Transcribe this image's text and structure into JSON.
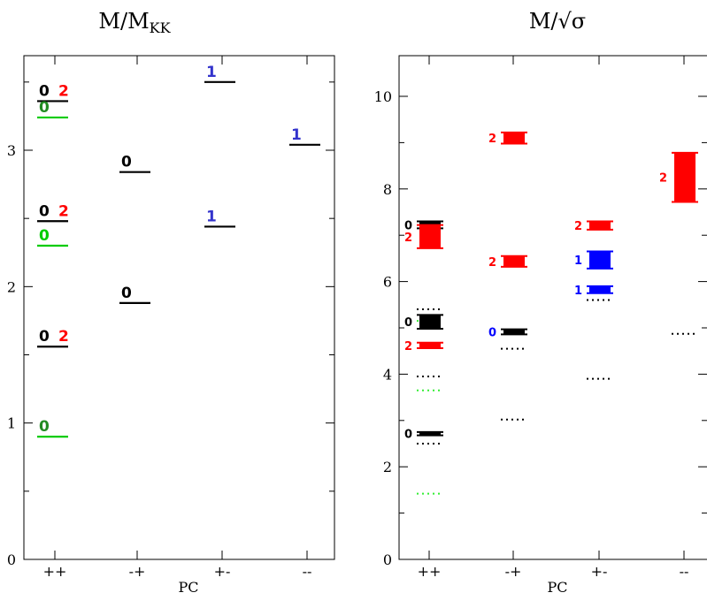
{
  "colors": {
    "black": "#000000",
    "red": "#ff0000",
    "green": "#00cc00",
    "darkgreen": "#228b22",
    "blue": "#0000ff",
    "label_blue": "#3333cc",
    "dotted_green": "#33ee33"
  },
  "chart_data": [
    {
      "type": "scatter",
      "title": "M/M",
      "title_sub": "KK",
      "xlabel": "PC",
      "ylabel": "",
      "categories": [
        "++",
        "-+",
        "+-",
        "--"
      ],
      "ylim": [
        0,
        3.5
      ],
      "yticks": [
        0,
        1,
        2,
        3
      ],
      "levels": [
        {
          "cat": 0,
          "y": 3.36,
          "color": "black",
          "labels": [
            {
              "text": "0",
              "color": "black"
            },
            {
              "text": "2",
              "color": "red"
            }
          ]
        },
        {
          "cat": 0,
          "y": 3.24,
          "color": "green",
          "labels": [
            {
              "text": "0",
              "color": "darkgreen"
            }
          ]
        },
        {
          "cat": 0,
          "y": 2.48,
          "color": "black",
          "labels": [
            {
              "text": "0",
              "color": "black"
            },
            {
              "text": "2",
              "color": "red"
            }
          ]
        },
        {
          "cat": 0,
          "y": 2.3,
          "color": "green",
          "labels": [
            {
              "text": "0",
              "color": "green"
            }
          ]
        },
        {
          "cat": 0,
          "y": 1.56,
          "color": "black",
          "labels": [
            {
              "text": "0",
              "color": "black"
            },
            {
              "text": "2",
              "color": "red"
            }
          ]
        },
        {
          "cat": 0,
          "y": 0.9,
          "color": "green",
          "labels": [
            {
              "text": "0",
              "color": "darkgreen"
            }
          ]
        },
        {
          "cat": 1,
          "y": 2.84,
          "color": "black",
          "labels": [
            {
              "text": "0",
              "color": "black"
            }
          ]
        },
        {
          "cat": 1,
          "y": 1.88,
          "color": "black",
          "labels": [
            {
              "text": "0",
              "color": "black"
            }
          ]
        },
        {
          "cat": 2,
          "y": 3.5,
          "color": "black",
          "labels": [
            {
              "text": "1",
              "color": "label_blue"
            }
          ]
        },
        {
          "cat": 2,
          "y": 2.44,
          "color": "black",
          "labels": [
            {
              "text": "1",
              "color": "label_blue"
            }
          ]
        },
        {
          "cat": 3,
          "y": 3.04,
          "color": "black",
          "labels": [
            {
              "text": "1",
              "color": "label_blue"
            }
          ]
        }
      ]
    },
    {
      "type": "scatter",
      "title": "M/√σ",
      "xlabel": "PC",
      "ylabel": "",
      "categories": [
        "++",
        "-+",
        "+-",
        "--"
      ],
      "ylim": [
        0,
        10.5
      ],
      "yticks": [
        0,
        2,
        4,
        6,
        8,
        10
      ],
      "bands": [
        {
          "cat": 0,
          "ylo": 7.15,
          "yhi": 7.3,
          "color": "black",
          "label": {
            "text": "0",
            "color": "black"
          }
        },
        {
          "cat": 0,
          "ylo": 6.72,
          "yhi": 7.22,
          "color": "red",
          "label": {
            "text": "2",
            "color": "red"
          }
        },
        {
          "cat": 0,
          "ylo": 4.98,
          "yhi": 5.28,
          "color": "black",
          "label": {
            "text": "0",
            "color": "black"
          }
        },
        {
          "cat": 0,
          "ylo": 4.56,
          "yhi": 4.68,
          "color": "red",
          "label": {
            "text": "2",
            "color": "red"
          }
        },
        {
          "cat": 0,
          "ylo": 2.68,
          "yhi": 2.75,
          "color": "black",
          "label": {
            "text": "0",
            "color": "black"
          }
        },
        {
          "cat": 1,
          "ylo": 8.98,
          "yhi": 9.22,
          "color": "red",
          "label": {
            "text": "2",
            "color": "red"
          }
        },
        {
          "cat": 1,
          "ylo": 6.32,
          "yhi": 6.55,
          "color": "red",
          "label": {
            "text": "2",
            "color": "red"
          }
        },
        {
          "cat": 1,
          "ylo": 4.86,
          "yhi": 4.97,
          "color": "black",
          "label": {
            "text": "0",
            "color": "blue"
          }
        },
        {
          "cat": 2,
          "ylo": 7.12,
          "yhi": 7.3,
          "color": "red",
          "label": {
            "text": "2",
            "color": "red"
          }
        },
        {
          "cat": 2,
          "ylo": 6.28,
          "yhi": 6.65,
          "color": "blue",
          "label": {
            "text": "1",
            "color": "blue"
          }
        },
        {
          "cat": 2,
          "ylo": 5.75,
          "yhi": 5.9,
          "color": "blue",
          "label": {
            "text": "1",
            "color": "blue"
          }
        },
        {
          "cat": 3,
          "ylo": 7.72,
          "yhi": 8.78,
          "color": "red",
          "label": {
            "text": "2",
            "color": "red"
          }
        }
      ],
      "dotted": [
        {
          "cat": 0,
          "y": 5.4,
          "color": "black"
        },
        {
          "cat": 0,
          "y": 5.15,
          "color": "dotted_green"
        },
        {
          "cat": 0,
          "y": 3.95,
          "color": "black"
        },
        {
          "cat": 0,
          "y": 3.65,
          "color": "dotted_green"
        },
        {
          "cat": 0,
          "y": 2.5,
          "color": "black"
        },
        {
          "cat": 0,
          "y": 1.42,
          "color": "dotted_green"
        },
        {
          "cat": 1,
          "y": 4.55,
          "color": "black"
        },
        {
          "cat": 1,
          "y": 3.02,
          "color": "black"
        },
        {
          "cat": 2,
          "y": 5.6,
          "color": "black"
        },
        {
          "cat": 2,
          "y": 3.9,
          "color": "black"
        },
        {
          "cat": 3,
          "y": 4.87,
          "color": "black"
        }
      ]
    }
  ]
}
